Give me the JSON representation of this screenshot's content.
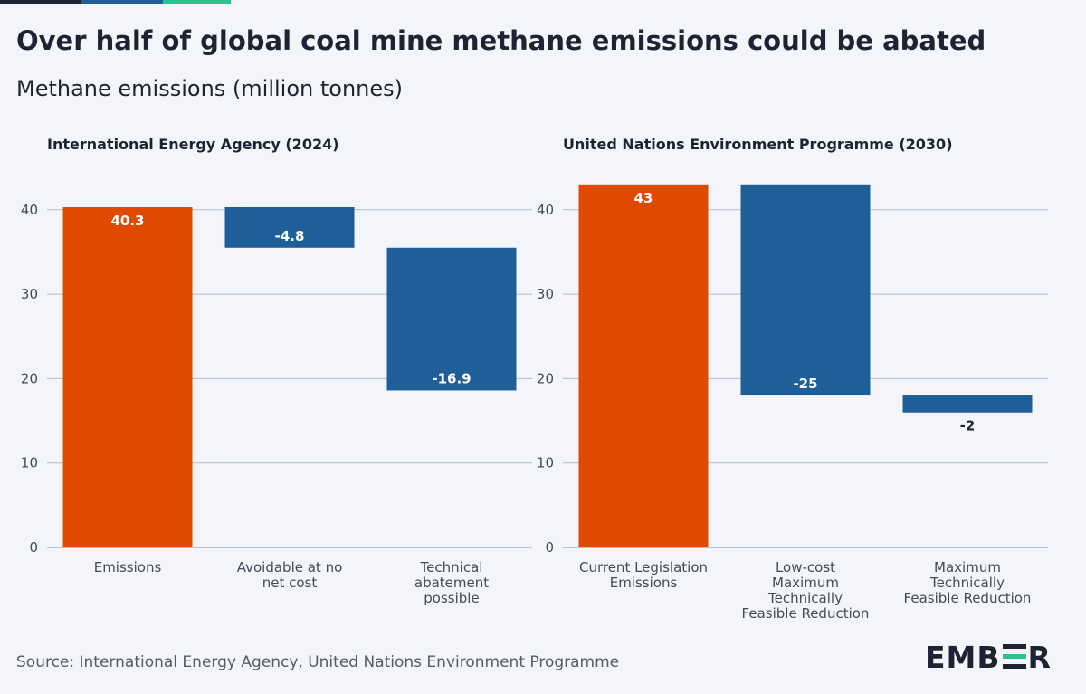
{
  "title": "Over half of global coal mine methane emissions could be abated",
  "subtitle": "Methane emissions (million tonnes)",
  "source": "Source: International Energy Agency, United Nations Environment Programme",
  "brand": {
    "name_left": "EMB",
    "name_right": "R",
    "accent_color": "#2bc38d",
    "dark_color": "#1e2233"
  },
  "colors": {
    "total": "#e04a00",
    "reduction": "#1f5f99",
    "grid": "#b5b9c8",
    "background": "#f4f5fa"
  },
  "chart_data": [
    {
      "type": "bar",
      "subtype": "waterfall",
      "title": "International Energy Agency (2024)",
      "ylabel": "Methane emissions (million tonnes)",
      "ylim": [
        0,
        43
      ],
      "yticks": [
        0,
        10,
        20,
        30,
        40
      ],
      "grid": true,
      "bars": [
        {
          "label": "Emissions",
          "start": 0,
          "end": 40.3,
          "value_label": "40.3",
          "kind": "total"
        },
        {
          "label": "Avoidable at no net cost",
          "start": 40.3,
          "end": 35.5,
          "value_label": "-4.8",
          "kind": "reduction"
        },
        {
          "label": "Technical abatement possible",
          "start": 35.5,
          "end": 18.6,
          "value_label": "-16.9",
          "kind": "reduction"
        }
      ]
    },
    {
      "type": "bar",
      "subtype": "waterfall",
      "title": "United Nations Environment Programme (2030)",
      "ylabel": "Methane emissions (million tonnes)",
      "ylim": [
        0,
        43
      ],
      "yticks": [
        0,
        10,
        20,
        30,
        40
      ],
      "grid": true,
      "bars": [
        {
          "label": "Current Legislation Emissions",
          "start": 0,
          "end": 43,
          "value_label": "43",
          "kind": "total"
        },
        {
          "label": "Low-cost Maximum Technically Feasible Reduction",
          "start": 43,
          "end": 18,
          "value_label": "-25",
          "kind": "reduction"
        },
        {
          "label": "Maximum Technically Feasible Reduction",
          "start": 18,
          "end": 16,
          "value_label": "-2",
          "kind": "reduction"
        }
      ]
    }
  ]
}
